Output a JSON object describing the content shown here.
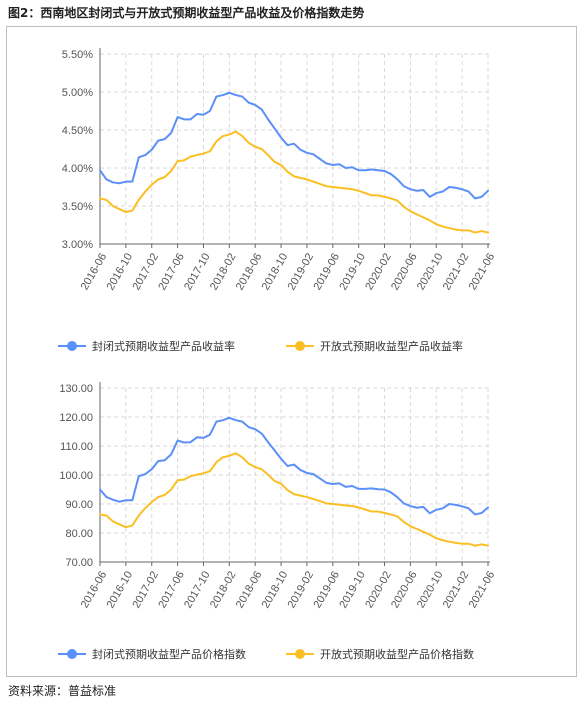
{
  "figure_title": "图2：西南地区封闭式与开放式预期收益型产品收益及价格指数走势",
  "source": "资料来源：普益标准",
  "colors": {
    "series1": "#5b8ff9",
    "series2": "#fbbf24",
    "grid": "#d9d9d9",
    "axis": "#666666"
  },
  "chart_data": [
    {
      "type": "line",
      "title": "",
      "x": [
        "2016-06",
        "2016-07",
        "2016-08",
        "2016-09",
        "2016-10",
        "2016-11",
        "2016-12",
        "2017-01",
        "2017-02",
        "2017-03",
        "2017-04",
        "2017-05",
        "2017-06",
        "2017-07",
        "2017-08",
        "2017-09",
        "2017-10",
        "2017-11",
        "2017-12",
        "2018-01",
        "2018-02",
        "2018-03",
        "2018-04",
        "2018-05",
        "2018-06",
        "2018-07",
        "2018-08",
        "2018-09",
        "2018-10",
        "2018-11",
        "2018-12",
        "2019-01",
        "2019-02",
        "2019-03",
        "2019-04",
        "2019-05",
        "2019-06",
        "2019-07",
        "2019-08",
        "2019-09",
        "2019-10",
        "2019-11",
        "2019-12",
        "2020-01",
        "2020-02",
        "2020-03",
        "2020-04",
        "2020-05",
        "2020-06",
        "2020-07",
        "2020-08",
        "2020-09",
        "2020-10",
        "2020-11",
        "2020-12",
        "2021-01",
        "2021-02",
        "2021-03",
        "2021-04",
        "2021-05",
        "2021-06"
      ],
      "x_tick_labels": [
        "2016-06",
        "2016-10",
        "2017-02",
        "2017-06",
        "2017-10",
        "2018-02",
        "2018-06",
        "2018-10",
        "2019-02",
        "2019-06",
        "2019-10",
        "2020-02",
        "2020-06",
        "2020-10",
        "2021-02",
        "2021-06"
      ],
      "y_tick_labels": [
        "3.00%",
        "3.50%",
        "4.00%",
        "4.50%",
        "5.00%",
        "5.50%"
      ],
      "ylim": [
        3.0,
        5.5
      ],
      "y_step": 0.5,
      "grid": true,
      "legend_position": "bottom",
      "series": [
        {
          "name": "封闭式预期收益型产品收益率",
          "color": "#5b8ff9",
          "values": [
            3.97,
            3.85,
            3.81,
            3.8,
            3.82,
            3.82,
            4.14,
            4.17,
            4.24,
            4.36,
            4.38,
            4.46,
            4.67,
            4.64,
            4.64,
            4.71,
            4.7,
            4.75,
            4.94,
            4.96,
            4.99,
            4.96,
            4.94,
            4.86,
            4.83,
            4.77,
            4.64,
            4.52,
            4.4,
            4.3,
            4.32,
            4.24,
            4.2,
            4.18,
            4.12,
            4.06,
            4.04,
            4.05,
            4.0,
            4.01,
            3.97,
            3.97,
            3.98,
            3.97,
            3.96,
            3.92,
            3.85,
            3.76,
            3.72,
            3.7,
            3.71,
            3.62,
            3.67,
            3.69,
            3.75,
            3.74,
            3.72,
            3.69,
            3.6,
            3.62,
            3.7
          ]
        },
        {
          "name": "开放式预期收益型产品收益率",
          "color": "#fbbf24",
          "values": [
            3.6,
            3.58,
            3.5,
            3.46,
            3.42,
            3.44,
            3.58,
            3.69,
            3.78,
            3.85,
            3.88,
            3.96,
            4.09,
            4.1,
            4.15,
            4.17,
            4.19,
            4.22,
            4.35,
            4.42,
            4.44,
            4.48,
            4.42,
            4.33,
            4.28,
            4.25,
            4.17,
            4.08,
            4.04,
            3.95,
            3.89,
            3.87,
            3.85,
            3.82,
            3.79,
            3.76,
            3.75,
            3.74,
            3.73,
            3.72,
            3.7,
            3.67,
            3.64,
            3.64,
            3.62,
            3.6,
            3.57,
            3.49,
            3.43,
            3.39,
            3.35,
            3.31,
            3.26,
            3.23,
            3.21,
            3.19,
            3.18,
            3.18,
            3.15,
            3.17,
            3.15
          ]
        }
      ]
    },
    {
      "type": "line",
      "title": "",
      "x": [
        "2016-06",
        "2016-07",
        "2016-08",
        "2016-09",
        "2016-10",
        "2016-11",
        "2016-12",
        "2017-01",
        "2017-02",
        "2017-03",
        "2017-04",
        "2017-05",
        "2017-06",
        "2017-07",
        "2017-08",
        "2017-09",
        "2017-10",
        "2017-11",
        "2017-12",
        "2018-01",
        "2018-02",
        "2018-03",
        "2018-04",
        "2018-05",
        "2018-06",
        "2018-07",
        "2018-08",
        "2018-09",
        "2018-10",
        "2018-11",
        "2018-12",
        "2019-01",
        "2019-02",
        "2019-03",
        "2019-04",
        "2019-05",
        "2019-06",
        "2019-07",
        "2019-08",
        "2019-09",
        "2019-10",
        "2019-11",
        "2019-12",
        "2020-01",
        "2020-02",
        "2020-03",
        "2020-04",
        "2020-05",
        "2020-06",
        "2020-07",
        "2020-08",
        "2020-09",
        "2020-10",
        "2020-11",
        "2020-12",
        "2021-01",
        "2021-02",
        "2021-03",
        "2021-04",
        "2021-05",
        "2021-06"
      ],
      "x_tick_labels": [
        "2016-06",
        "2016-10",
        "2017-02",
        "2017-06",
        "2017-10",
        "2018-02",
        "2018-06",
        "2018-10",
        "2019-02",
        "2019-06",
        "2019-10",
        "2020-02",
        "2020-06",
        "2020-10",
        "2021-02",
        "2021-06"
      ],
      "y_tick_labels": [
        "70.00",
        "80.00",
        "90.00",
        "100.00",
        "110.00",
        "120.00",
        "130.00"
      ],
      "ylim": [
        70,
        130
      ],
      "y_step": 10,
      "grid": true,
      "legend_position": "bottom",
      "series": [
        {
          "name": "封闭式预期收益型产品价格指数",
          "color": "#5b8ff9",
          "values": [
            95.0,
            92.4,
            91.5,
            90.8,
            91.3,
            91.3,
            99.6,
            100.3,
            102.0,
            104.8,
            105.1,
            107.1,
            111.9,
            111.2,
            111.3,
            113.0,
            112.8,
            113.9,
            118.4,
            118.9,
            119.7,
            118.9,
            118.4,
            116.5,
            115.8,
            114.3,
            111.3,
            108.5,
            105.6,
            103.1,
            103.6,
            101.7,
            100.7,
            100.3,
            98.8,
            97.3,
            96.9,
            97.1,
            95.9,
            96.2,
            95.2,
            95.2,
            95.4,
            95.1,
            95.0,
            94.0,
            92.3,
            90.2,
            89.3,
            88.7,
            89.0,
            86.8,
            88.0,
            88.5,
            90.0,
            89.7,
            89.2,
            88.5,
            86.4,
            86.9,
            88.8
          ]
        },
        {
          "name": "开放式预期收益型产品价格指数",
          "color": "#fbbf24",
          "values": [
            86.4,
            86.0,
            84.0,
            83.0,
            82.0,
            82.6,
            86.0,
            88.6,
            90.7,
            92.4,
            93.1,
            95.0,
            98.2,
            98.4,
            99.6,
            100.1,
            100.6,
            101.3,
            104.4,
            106.1,
            106.6,
            107.5,
            106.1,
            103.9,
            102.7,
            102.0,
            100.1,
            97.9,
            97.0,
            94.8,
            93.4,
            92.9,
            92.4,
            91.7,
            91.0,
            90.2,
            90.0,
            89.8,
            89.5,
            89.3,
            88.8,
            88.1,
            87.4,
            87.4,
            86.9,
            86.4,
            85.7,
            83.8,
            82.3,
            81.4,
            80.4,
            79.4,
            78.2,
            77.5,
            77.0,
            76.6,
            76.3,
            76.3,
            75.6,
            76.1,
            75.6
          ]
        }
      ]
    }
  ]
}
